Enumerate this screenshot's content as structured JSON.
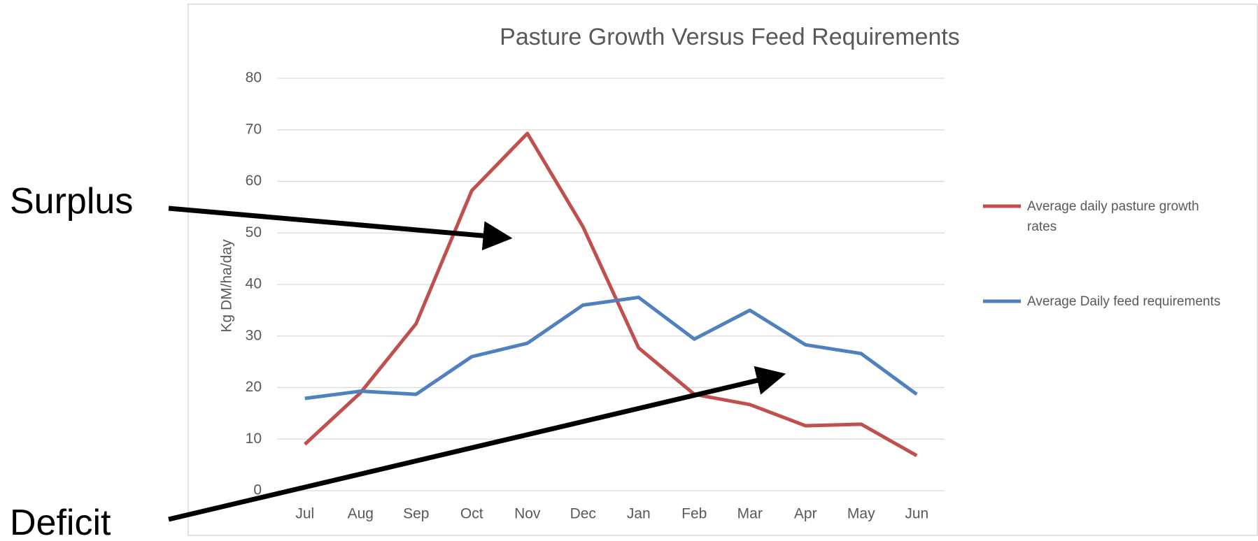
{
  "chart_data": {
    "type": "line",
    "title": "Pasture Growth Versus Feed Requirements",
    "y_label": "Kg DM/ha/day",
    "categories": [
      "Jul",
      "Aug",
      "Sep",
      "Oct",
      "Nov",
      "Dec",
      "Jan",
      "Feb",
      "Mar",
      "Apr",
      "May",
      "Jun"
    ],
    "series": [
      {
        "name": "Average daily pasture growth rates",
        "color": "#c0504d",
        "values": [
          9,
          19,
          32.4,
          58.2,
          69.3,
          51.2,
          27.7,
          18.7,
          16.7,
          12.6,
          12.9,
          6.8
        ]
      },
      {
        "name": "Average Daily feed requirements",
        "color": "#4f81bd",
        "values": [
          17.9,
          19.3,
          18.7,
          26,
          28.6,
          36,
          37.5,
          29.4,
          35,
          28.3,
          26.6,
          18.7
        ]
      }
    ],
    "ylim": [
      0,
      80
    ],
    "yticks": [
      0,
      10,
      20,
      30,
      40,
      50,
      60,
      70,
      80
    ],
    "grid": true,
    "legend": "right",
    "annotations": [
      "Surplus",
      "Deficit"
    ]
  }
}
